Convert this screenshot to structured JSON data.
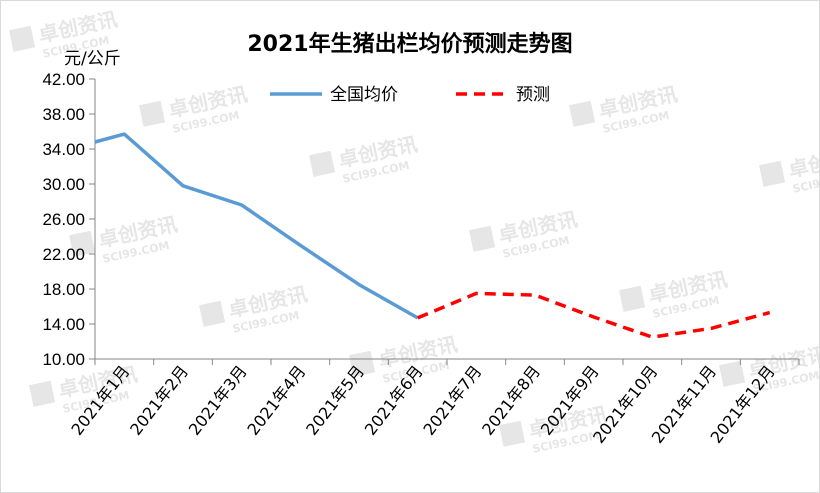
{
  "chart_data": {
    "type": "line",
    "title": "2021年生猪出栏均价预测走势图",
    "ylabel": "元/公斤",
    "xlabel": "",
    "categories": [
      "2021年1月",
      "2021年2月",
      "2021年3月",
      "2021年4月",
      "2021年5月",
      "2021年6月",
      "2021年7月",
      "2021年8月",
      "2021年9月",
      "2021年10月",
      "2021年11月",
      "2021年12月"
    ],
    "ylim": [
      10,
      42
    ],
    "yticks": [
      "10.00",
      "14.00",
      "18.00",
      "22.00",
      "26.00",
      "30.00",
      "34.00",
      "38.00",
      "42.00"
    ],
    "grid": false,
    "legend_position": "top",
    "series": [
      {
        "name": "全国均价",
        "style": "solid",
        "color": "#5b9bd5",
        "points": [
          {
            "x": "2021年1月",
            "y": 34.8
          },
          {
            "x": "2021年1.5月",
            "y": 35.7
          },
          {
            "x": "2021年2.5月",
            "y": 29.8
          },
          {
            "x": "2021年3.5月",
            "y": 27.6
          },
          {
            "x": "2021年4.5月",
            "y": 23.0
          },
          {
            "x": "2021年5.5月",
            "y": 18.5
          },
          {
            "x": "2021年6.5月",
            "y": 14.7
          }
        ]
      },
      {
        "name": "预测",
        "style": "dashed",
        "color": "#ff0000",
        "points": [
          {
            "x": "2021年6.5月",
            "y": 14.7
          },
          {
            "x": "2021年7.5月",
            "y": 17.5
          },
          {
            "x": "2021年8.5月",
            "y": 17.3
          },
          {
            "x": "2021年9.5月",
            "y": 14.8
          },
          {
            "x": "2021年10.5月",
            "y": 12.5
          },
          {
            "x": "2021年11.5月",
            "y": 13.5
          },
          {
            "x": "2021年12.5月",
            "y": 15.3
          }
        ]
      }
    ]
  },
  "watermark": {
    "cn": "卓创资讯",
    "en": "SCI99.COM",
    "color": "#e6e6e6"
  }
}
